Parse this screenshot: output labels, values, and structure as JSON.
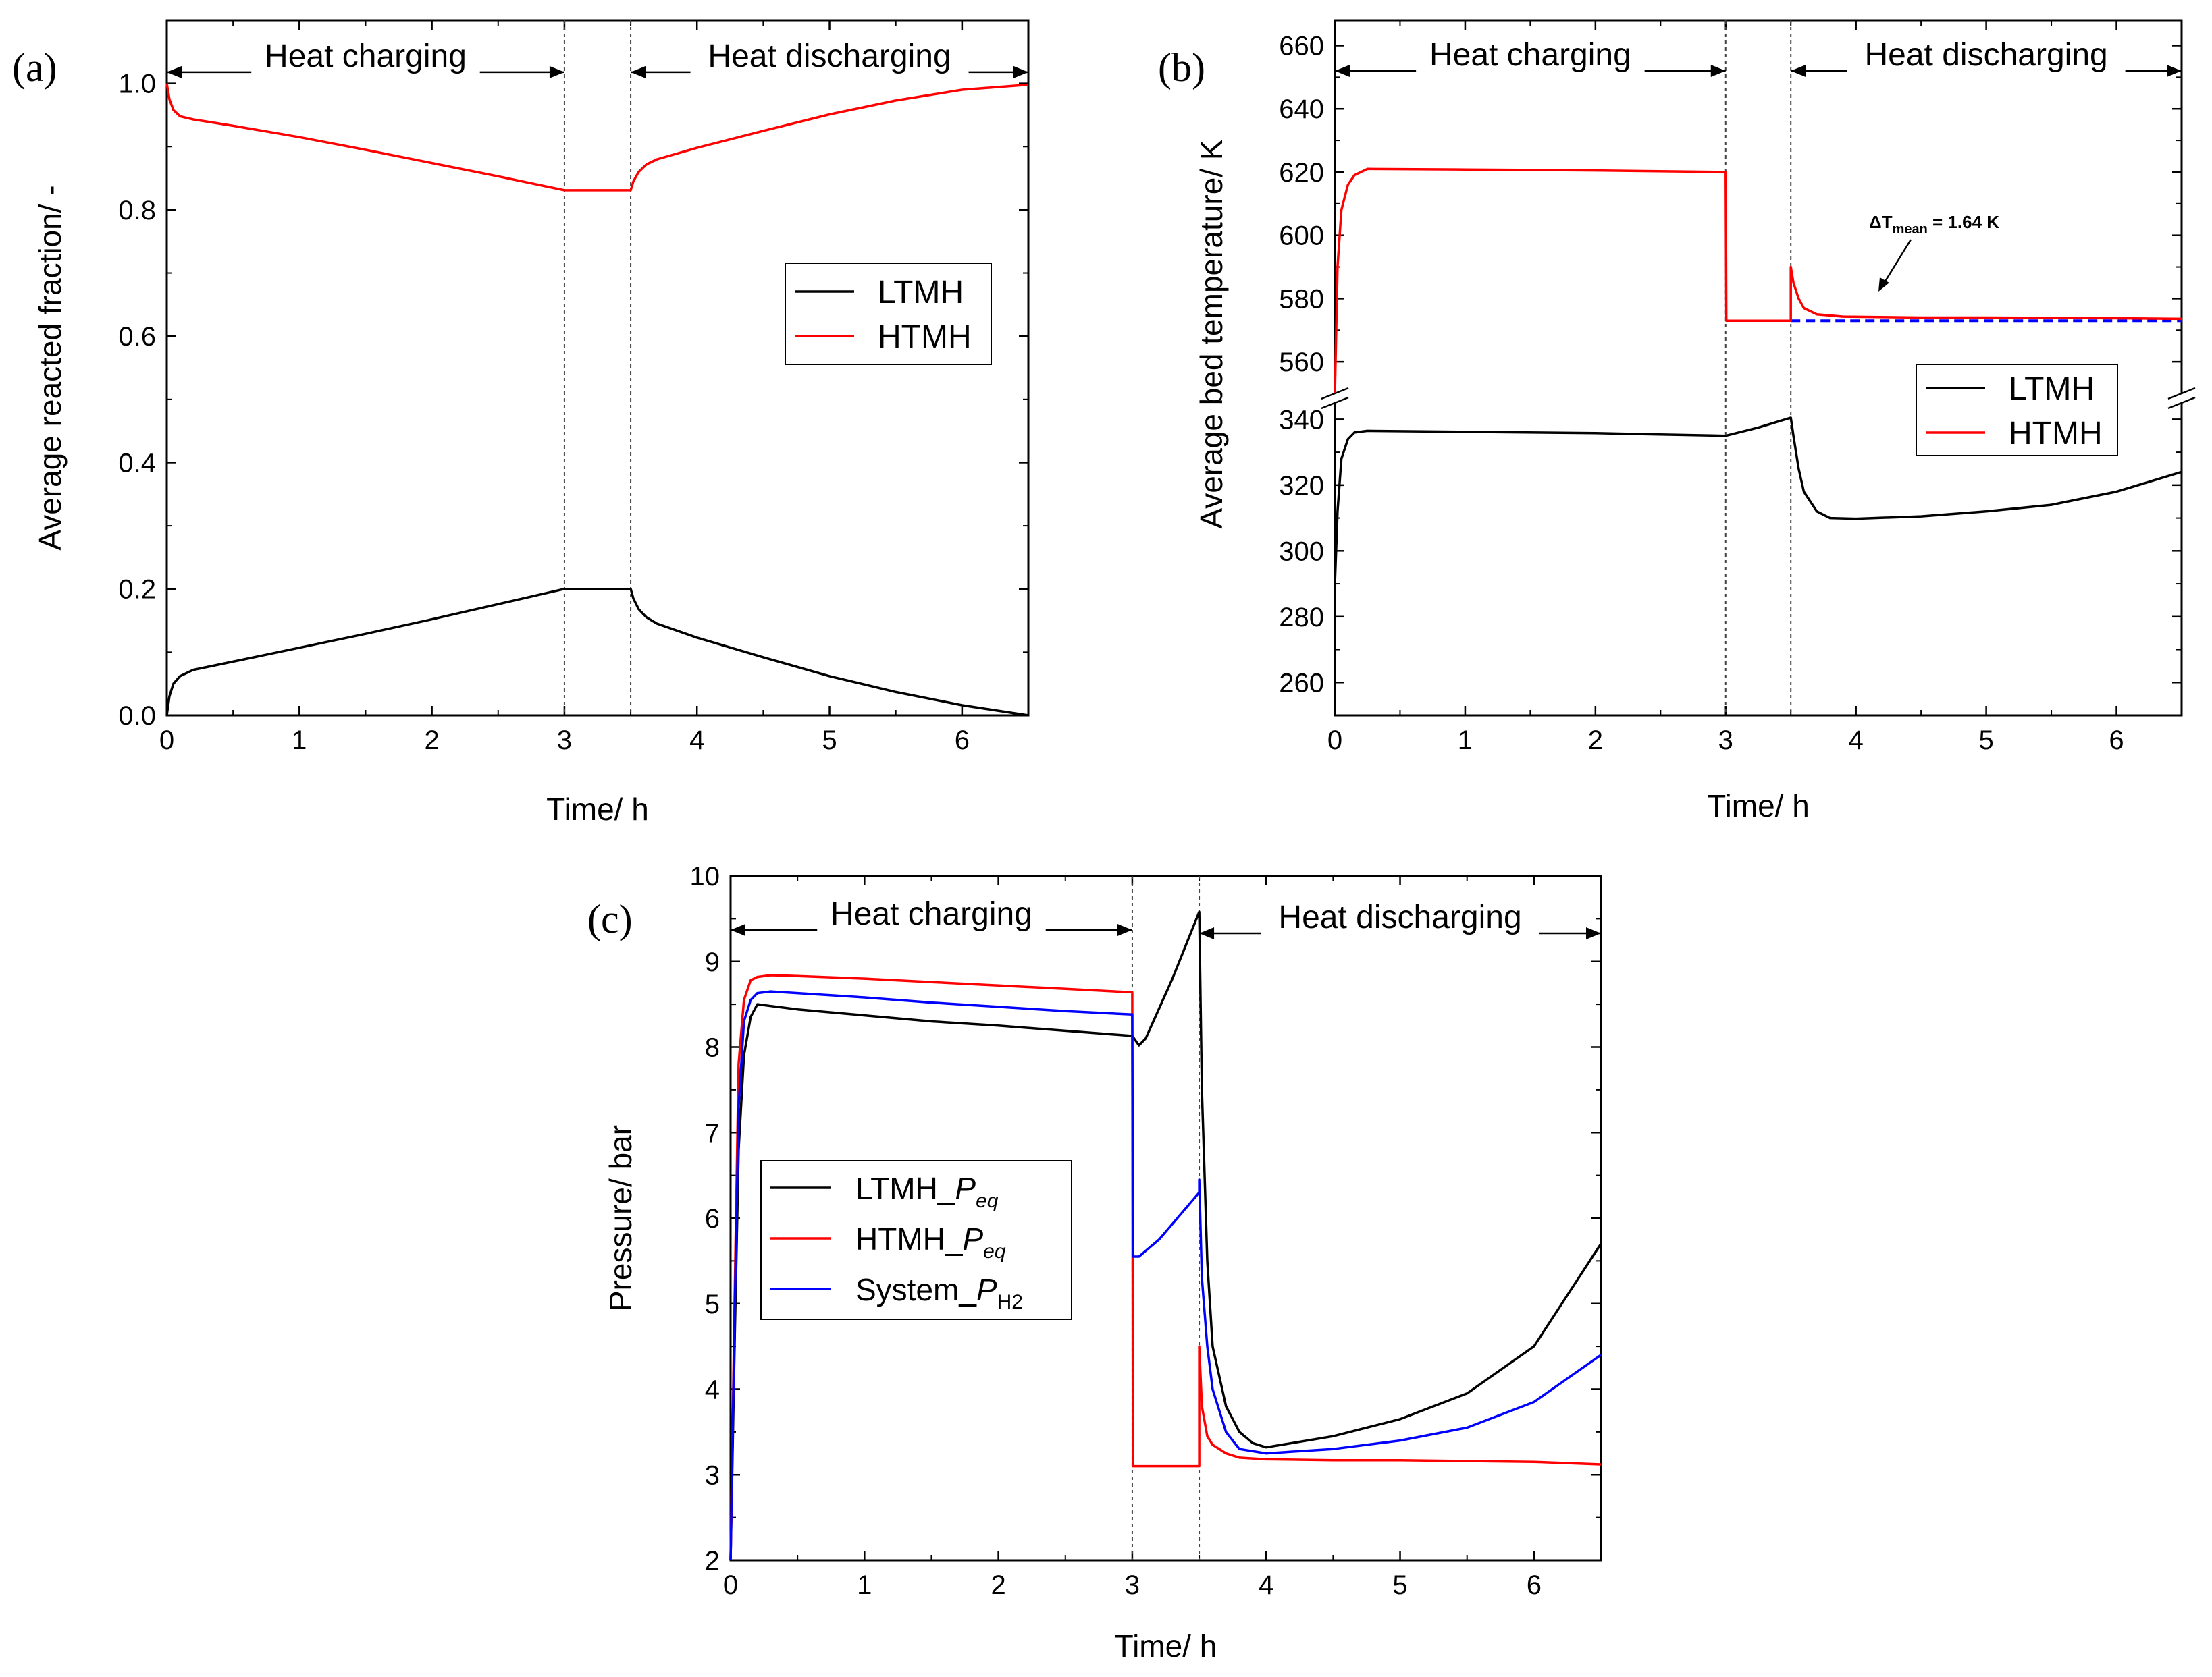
{
  "chart_data": [
    {
      "type": "line",
      "panel_label": "(a)",
      "xlabel": "Time/ h",
      "ylabel": "Average reacted fraction/ -",
      "xlim": [
        0,
        6.5
      ],
      "ylim": [
        0,
        1.1
      ],
      "xticks": [
        0,
        1,
        2,
        3,
        4,
        5,
        6
      ],
      "yticks": [
        0.0,
        0.2,
        0.4,
        0.6,
        0.8,
        1.0
      ],
      "ytick_labels": [
        "0.0",
        "0.2",
        "0.4",
        "0.6",
        "0.8",
        "1.0"
      ],
      "vlines": [
        3,
        3.5
      ],
      "annotations": [
        {
          "text": "Heat charging",
          "x_from": 0,
          "x_to": 3,
          "y": 1.02
        },
        {
          "text": "Heat discharging",
          "x_from": 3.5,
          "x_to": 6.5,
          "y": 1.02
        }
      ],
      "legend": {
        "position": "right-middle"
      },
      "series": [
        {
          "name": "LTMH",
          "color": "#000000",
          "x": [
            0,
            0.02,
            0.05,
            0.1,
            0.2,
            0.5,
            1,
            1.5,
            2,
            2.5,
            3,
            3.5,
            3.52,
            3.56,
            3.62,
            3.7,
            4,
            4.5,
            5,
            5.5,
            6,
            6.5
          ],
          "y": [
            0,
            0.03,
            0.05,
            0.062,
            0.072,
            0.085,
            0.107,
            0.129,
            0.152,
            0.176,
            0.2,
            0.2,
            0.185,
            0.168,
            0.155,
            0.145,
            0.123,
            0.092,
            0.062,
            0.037,
            0.016,
            0.0
          ]
        },
        {
          "name": "HTMH",
          "color": "#ff0000",
          "x": [
            0,
            0.02,
            0.05,
            0.1,
            0.2,
            0.5,
            1,
            1.5,
            2,
            2.5,
            3,
            3.5,
            3.52,
            3.56,
            3.62,
            3.7,
            4,
            4.5,
            5,
            5.5,
            6,
            6.5
          ],
          "y": [
            1.0,
            0.975,
            0.958,
            0.948,
            0.943,
            0.933,
            0.915,
            0.895,
            0.874,
            0.853,
            0.831,
            0.831,
            0.845,
            0.86,
            0.872,
            0.88,
            0.898,
            0.925,
            0.951,
            0.973,
            0.99,
            0.998
          ]
        }
      ]
    },
    {
      "type": "line",
      "panel_label": "(b)",
      "xlabel": "Time/ h",
      "ylabel": "Average bed temperature/ K",
      "xlim": [
        0,
        6.5
      ],
      "ylim_lower": [
        250,
        345
      ],
      "ylim_upper": [
        550,
        668
      ],
      "axis_break": true,
      "xticks": [
        0,
        1,
        2,
        3,
        4,
        5,
        6
      ],
      "yticks_lower": [
        260,
        280,
        300,
        320,
        340
      ],
      "yticks_upper": [
        560,
        580,
        600,
        620,
        640,
        660
      ],
      "vlines": [
        3,
        3.5
      ],
      "annotations": [
        {
          "text": "Heat charging",
          "x_from": 0,
          "x_to": 3
        },
        {
          "text": "Heat discharging",
          "x_from": 3.5,
          "x_to": 6.5
        },
        {
          "text": "ΔT",
          "sub": "mean",
          "suffix": " = 1.64 K"
        }
      ],
      "reference_line": {
        "y": 573,
        "x_from": 3.5,
        "x_to": 6.5,
        "style": "dashed",
        "color": "#0000ff"
      },
      "legend": {
        "position": "right-middle"
      },
      "series": [
        {
          "name": "LTMH",
          "color": "#000000",
          "x": [
            0,
            0.02,
            0.05,
            0.1,
            0.15,
            0.25,
            1,
            2,
            3,
            3.25,
            3.5,
            3.52,
            3.56,
            3.6,
            3.7,
            3.8,
            4,
            4.5,
            5,
            5.5,
            6,
            6.5
          ],
          "y": [
            290,
            312,
            328,
            334,
            336,
            336.5,
            336.2,
            335.8,
            335,
            337.5,
            340.5,
            335,
            325,
            318,
            312,
            310,
            309.8,
            310.5,
            312,
            314,
            318,
            324
          ]
        },
        {
          "name": "HTMH",
          "color": "#ff0000",
          "x": [
            0,
            0.02,
            0.05,
            0.1,
            0.15,
            0.25,
            1,
            2,
            3,
            3.005,
            3.1,
            3.5,
            3.5,
            3.52,
            3.56,
            3.6,
            3.7,
            3.9,
            4.5,
            5,
            6,
            6.5
          ],
          "y": [
            550,
            590,
            608,
            616,
            619,
            621,
            620.8,
            620.5,
            620,
            573,
            573,
            573,
            590,
            585,
            580,
            577,
            575,
            574.3,
            574,
            574,
            573.8,
            573.6
          ]
        }
      ]
    },
    {
      "type": "line",
      "panel_label": "(c)",
      "xlabel": "Time/ h",
      "ylabel": "Pressure/ bar",
      "xlim": [
        0,
        6.5
      ],
      "ylim": [
        2,
        10
      ],
      "xticks": [
        0,
        1,
        2,
        3,
        4,
        5,
        6
      ],
      "yticks": [
        2,
        3,
        4,
        5,
        6,
        7,
        8,
        9,
        10
      ],
      "vlines": [
        3,
        3.5
      ],
      "annotations": [
        {
          "text": "Heat charging",
          "x_from": 0,
          "x_to": 3
        },
        {
          "text": "Heat discharging",
          "x_from": 3.5,
          "x_to": 6.5
        }
      ],
      "legend": {
        "position": "left-middle"
      },
      "series": [
        {
          "name": "LTMH_Peq",
          "legend_base": "LTMH_",
          "legend_italic": "P",
          "legend_sub": "eq",
          "color": "#000000",
          "x": [
            0,
            0.03,
            0.06,
            0.1,
            0.15,
            0.2,
            0.3,
            0.5,
            1,
            1.5,
            2,
            2.5,
            3,
            3.05,
            3.1,
            3.3,
            3.5,
            3.52,
            3.56,
            3.6,
            3.7,
            3.8,
            3.9,
            4,
            4.5,
            5,
            5.5,
            6,
            6.5
          ],
          "y": [
            2,
            4.5,
            6.8,
            7.9,
            8.35,
            8.5,
            8.48,
            8.44,
            8.37,
            8.3,
            8.25,
            8.19,
            8.13,
            8.02,
            8.1,
            8.8,
            9.58,
            7.5,
            5.5,
            4.5,
            3.8,
            3.5,
            3.37,
            3.32,
            3.45,
            3.65,
            3.95,
            4.5,
            5.7
          ]
        },
        {
          "name": "HTMH_Peq",
          "legend_base": "HTMH_",
          "legend_italic": "P",
          "legend_sub": "eq",
          "color": "#ff0000",
          "x": [
            0,
            0.03,
            0.06,
            0.1,
            0.15,
            0.2,
            0.3,
            0.5,
            1,
            1.5,
            2,
            2.5,
            3,
            3.005,
            3.1,
            3.5,
            3.5,
            3.52,
            3.56,
            3.6,
            3.7,
            3.8,
            4,
            4.5,
            5,
            5.5,
            6,
            6.5
          ],
          "y": [
            2,
            5,
            7.8,
            8.55,
            8.78,
            8.82,
            8.84,
            8.83,
            8.8,
            8.76,
            8.72,
            8.68,
            8.64,
            3.1,
            3.1,
            3.1,
            4.5,
            3.8,
            3.45,
            3.35,
            3.25,
            3.2,
            3.18,
            3.17,
            3.17,
            3.16,
            3.15,
            3.12
          ]
        },
        {
          "name": "System_PH2",
          "legend_base": "System_",
          "legend_italic": "P",
          "legend_sub": "H2",
          "color": "#0000ff",
          "x": [
            0,
            0.03,
            0.06,
            0.1,
            0.15,
            0.2,
            0.3,
            0.5,
            1,
            1.5,
            2,
            2.5,
            3,
            3.005,
            3.05,
            3.2,
            3.5,
            3.5,
            3.52,
            3.56,
            3.6,
            3.7,
            3.8,
            4,
            4.5,
            5,
            5.5,
            6,
            6.5
          ],
          "y": [
            2,
            4.8,
            7.3,
            8.3,
            8.55,
            8.63,
            8.65,
            8.63,
            8.58,
            8.52,
            8.47,
            8.42,
            8.38,
            5.55,
            5.55,
            5.75,
            6.3,
            6.45,
            5.3,
            4.5,
            4.0,
            3.5,
            3.3,
            3.25,
            3.3,
            3.4,
            3.55,
            3.85,
            4.4
          ]
        }
      ]
    }
  ]
}
